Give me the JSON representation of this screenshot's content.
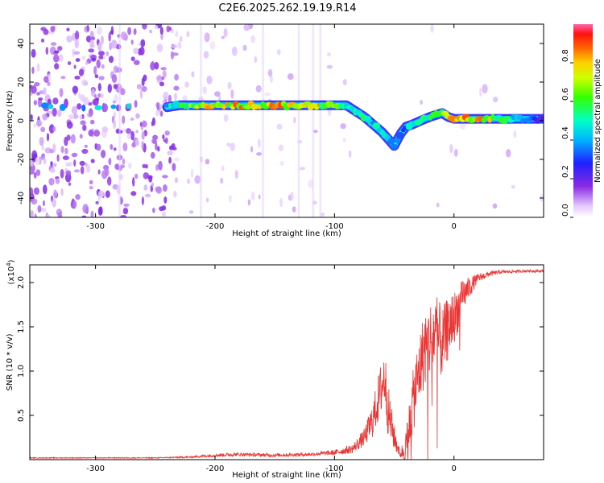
{
  "page_title": "C2E6.2025.262.19.19.R14",
  "chart_data": [
    {
      "type": "heatmap",
      "id": "spectrogram",
      "title": "C2E6.2025.262.19.19.R14",
      "xlabel": "Height of straight line (km)",
      "ylabel": "Frequency (Hz)",
      "xlim": [
        -355,
        75
      ],
      "ylim": [
        -50,
        50
      ],
      "xticks": [
        -300,
        -200,
        -100,
        0
      ],
      "yticks": [
        -40,
        -20,
        0,
        20,
        40
      ],
      "colorbar": {
        "label": "Normalized spectral amplitude",
        "range": [
          0,
          1
        ],
        "ticks": [
          "0.0",
          "0.2",
          "0.4",
          "0.6",
          "0.8"
        ]
      },
      "signal_track": {
        "x": [
          -355,
          -240,
          -230,
          -200,
          -150,
          -100,
          -90,
          -75,
          -60,
          -50,
          -45,
          -40,
          -35,
          -28,
          -20,
          -10,
          -5,
          0,
          20,
          75
        ],
        "freq": [
          7,
          7,
          8,
          8,
          8,
          8,
          8,
          2,
          -6,
          -13,
          -7,
          -3,
          -2,
          0,
          2,
          4,
          2,
          1,
          1,
          1
        ],
        "amplitude": [
          0.45,
          0.5,
          0.6,
          0.8,
          0.85,
          0.75,
          0.6,
          0.55,
          0.45,
          0.4,
          0.35,
          0.4,
          0.5,
          0.55,
          0.55,
          0.7,
          0.8,
          0.9,
          0.85,
          0.25
        ]
      }
    },
    {
      "type": "line",
      "id": "snr",
      "xlabel": "Height of straight line (km)",
      "ylabel": "SNR (10 * v/v)",
      "y_multiplier": "(x10",
      "y_multiplier_exp": "4",
      "y_multiplier_close": ")",
      "xlim": [
        -355,
        75
      ],
      "ylim": [
        0,
        2.2
      ],
      "xticks": [
        -300,
        -200,
        -100,
        0
      ],
      "ytick_values": [
        0.5,
        1.0,
        1.5,
        2.0
      ],
      "ytick_labels": [
        "0.5",
        "1.0",
        "1.5",
        "2.0"
      ],
      "series": [
        {
          "name": "SNR",
          "color": "#ee3333",
          "x": [
            -355,
            -300,
            -250,
            -220,
            -200,
            -180,
            -150,
            -120,
            -100,
            -85,
            -75,
            -68,
            -62,
            -58,
            -55,
            -50,
            -45,
            -40,
            -35,
            -30,
            -25,
            -20,
            -15,
            -10,
            -5,
            0,
            5,
            10,
            20,
            30,
            40,
            60,
            75
          ],
          "y": [
            0.02,
            0.02,
            0.02,
            0.03,
            0.05,
            0.06,
            0.05,
            0.06,
            0.08,
            0.12,
            0.25,
            0.45,
            0.75,
            0.95,
            0.55,
            0.25,
            0.06,
            0.15,
            0.6,
            0.95,
            1.25,
            1.35,
            1.45,
            1.3,
            1.5,
            1.6,
            1.75,
            1.9,
            2.05,
            2.1,
            2.12,
            2.13,
            2.13
          ],
          "noise": [
            0.005,
            0.005,
            0.005,
            0.01,
            0.02,
            0.02,
            0.02,
            0.02,
            0.03,
            0.05,
            0.1,
            0.2,
            0.3,
            0.35,
            0.3,
            0.15,
            0.04,
            0.2,
            0.35,
            0.4,
            0.45,
            0.45,
            0.45,
            0.4,
            0.35,
            0.3,
            0.25,
            0.15,
            0.05,
            0.03,
            0.02,
            0.015,
            0.015
          ]
        }
      ]
    }
  ]
}
